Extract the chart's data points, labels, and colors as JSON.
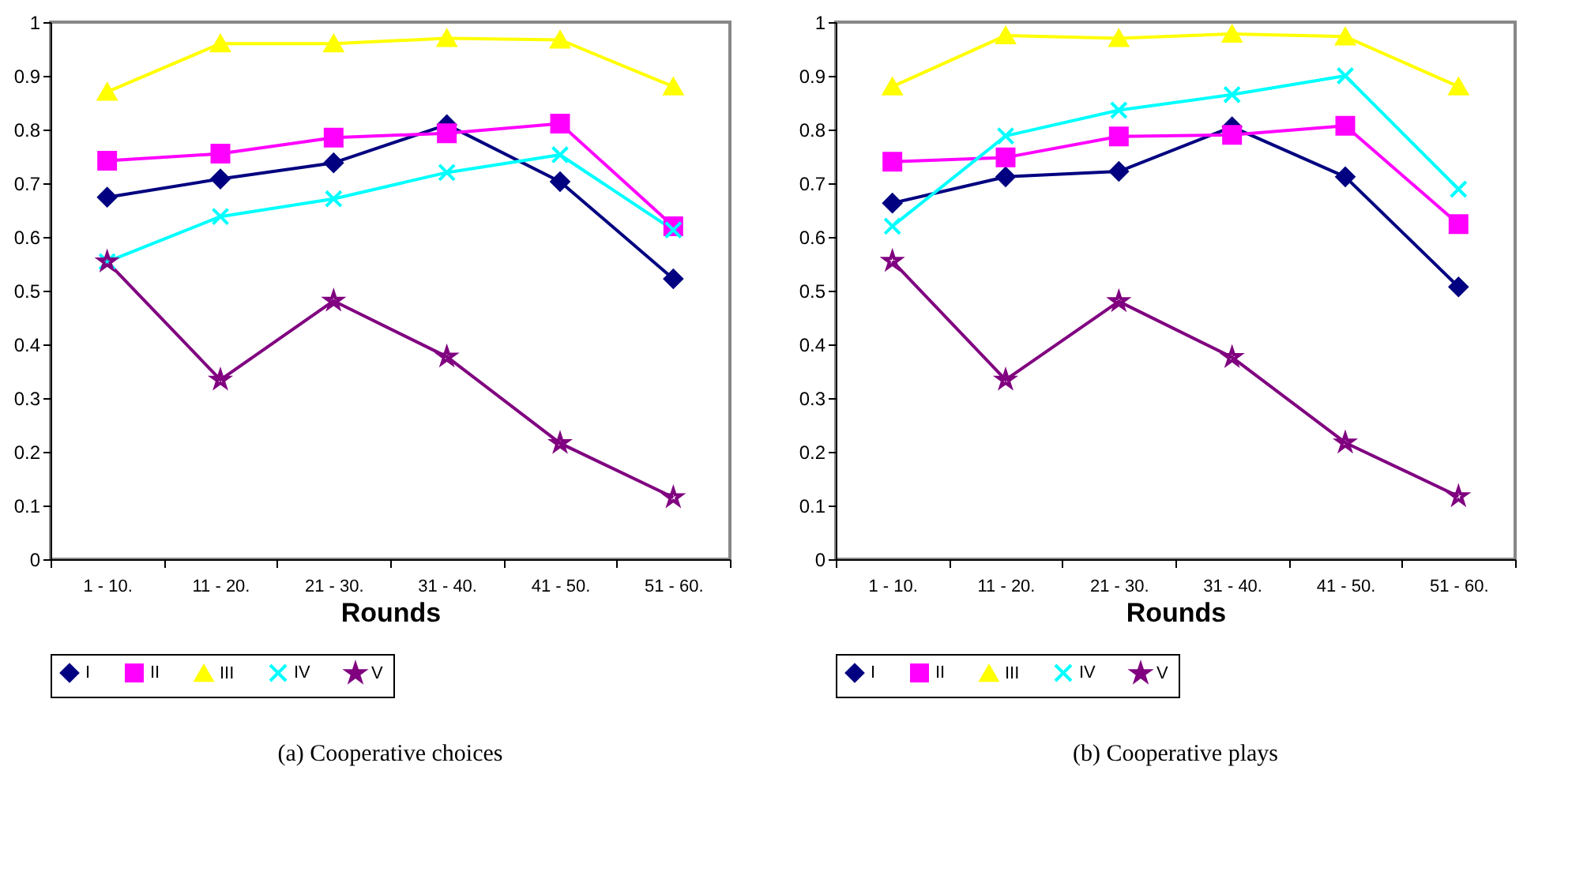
{
  "chart_data": [
    {
      "type": "line",
      "title": "(a) Cooperative choices",
      "xlabel": "Rounds",
      "categories": [
        "1 - 10.",
        "11 - 20.",
        "21 - 30.",
        "31 - 40.",
        "41 - 50.",
        "51 - 60."
      ],
      "ylim": [
        0,
        1
      ],
      "yticks": [
        0,
        0.1,
        0.2,
        0.3,
        0.4,
        0.5,
        0.6,
        0.7,
        0.8,
        0.9,
        1
      ],
      "legend": "bottom",
      "series": [
        {
          "name": "I",
          "color": "#000080",
          "marker": "diamond",
          "values": [
            0.674,
            0.708,
            0.738,
            0.809,
            0.703,
            0.522
          ]
        },
        {
          "name": "II",
          "color": "#ff00ff",
          "marker": "square",
          "values": [
            0.742,
            0.755,
            0.785,
            0.793,
            0.811,
            0.62
          ]
        },
        {
          "name": "III",
          "color": "#ffff00",
          "marker": "triangle",
          "values": [
            0.87,
            0.96,
            0.96,
            0.97,
            0.967,
            0.88
          ]
        },
        {
          "name": "IV",
          "color": "#00ffff",
          "marker": "cross",
          "values": [
            0.554,
            0.638,
            0.671,
            0.72,
            0.753,
            0.613
          ]
        },
        {
          "name": "V",
          "color": "#800080",
          "marker": "star",
          "values": [
            0.554,
            0.334,
            0.481,
            0.377,
            0.216,
            0.115
          ]
        }
      ]
    },
    {
      "type": "line",
      "title": "(b) Cooperative plays",
      "xlabel": "Rounds",
      "categories": [
        "1 - 10.",
        "11 - 20.",
        "21 - 30.",
        "31 - 40.",
        "41 - 50.",
        "51 - 60."
      ],
      "ylim": [
        0,
        1
      ],
      "yticks": [
        0,
        0.1,
        0.2,
        0.3,
        0.4,
        0.5,
        0.6,
        0.7,
        0.8,
        0.9,
        1
      ],
      "legend": "bottom",
      "series": [
        {
          "name": "I",
          "color": "#000080",
          "marker": "diamond",
          "values": [
            0.663,
            0.712,
            0.722,
            0.805,
            0.712,
            0.507
          ]
        },
        {
          "name": "II",
          "color": "#ff00ff",
          "marker": "square",
          "values": [
            0.74,
            0.748,
            0.787,
            0.79,
            0.807,
            0.624
          ]
        },
        {
          "name": "III",
          "color": "#ffff00",
          "marker": "triangle",
          "values": [
            0.88,
            0.975,
            0.97,
            0.978,
            0.973,
            0.88
          ]
        },
        {
          "name": "IV",
          "color": "#00ffff",
          "marker": "cross",
          "values": [
            0.62,
            0.788,
            0.836,
            0.865,
            0.9,
            0.689
          ]
        },
        {
          "name": "V",
          "color": "#800080",
          "marker": "star",
          "values": [
            0.555,
            0.334,
            0.48,
            0.376,
            0.217,
            0.117
          ]
        }
      ]
    }
  ]
}
